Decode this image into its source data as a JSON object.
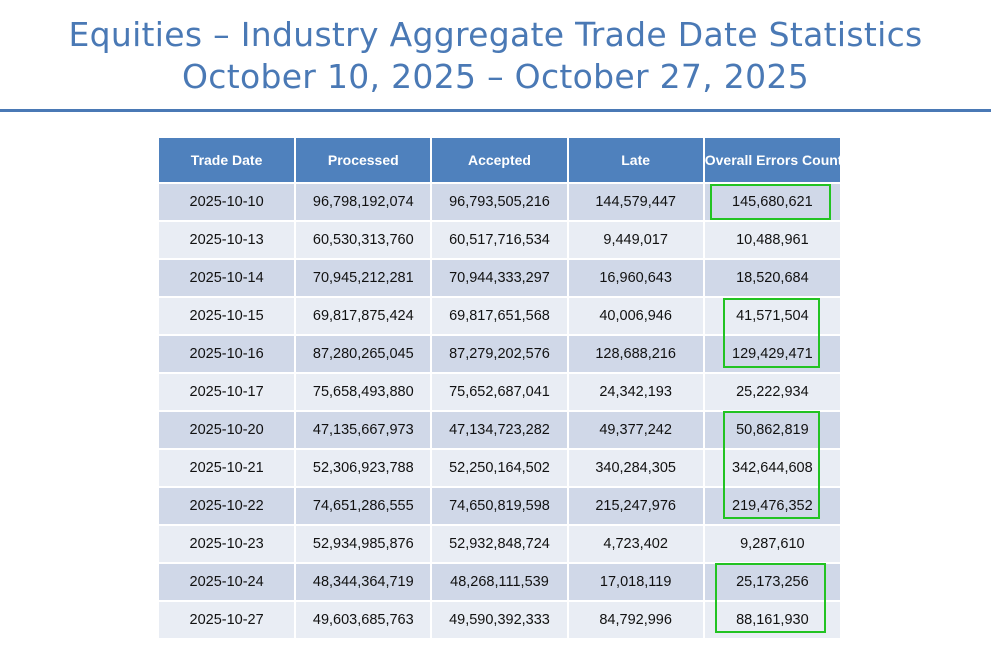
{
  "header": {
    "title_line1": "Equities – Industry Aggregate Trade Date Statistics",
    "title_line2": "October 10, 2025 – October 27, 2025"
  },
  "table": {
    "columns": [
      "Trade Date",
      "Processed",
      "Accepted",
      "Late",
      "Overall Errors Count"
    ],
    "rows": [
      {
        "trade_date": "2025-10-10",
        "processed": "96,798,192,074",
        "accepted": "96,793,505,216",
        "late": "144,579,447",
        "errors": "145,680,621"
      },
      {
        "trade_date": "2025-10-13",
        "processed": "60,530,313,760",
        "accepted": "60,517,716,534",
        "late": "9,449,017",
        "errors": "10,488,961"
      },
      {
        "trade_date": "2025-10-14",
        "processed": "70,945,212,281",
        "accepted": "70,944,333,297",
        "late": "16,960,643",
        "errors": "18,520,684"
      },
      {
        "trade_date": "2025-10-15",
        "processed": "69,817,875,424",
        "accepted": "69,817,651,568",
        "late": "40,006,946",
        "errors": "41,571,504"
      },
      {
        "trade_date": "2025-10-16",
        "processed": "87,280,265,045",
        "accepted": "87,279,202,576",
        "late": "128,688,216",
        "errors": "129,429,471"
      },
      {
        "trade_date": "2025-10-17",
        "processed": "75,658,493,880",
        "accepted": "75,652,687,041",
        "late": "24,342,193",
        "errors": "25,222,934"
      },
      {
        "trade_date": "2025-10-20",
        "processed": "47,135,667,973",
        "accepted": "47,134,723,282",
        "late": "49,377,242",
        "errors": "50,862,819"
      },
      {
        "trade_date": "2025-10-21",
        "processed": "52,306,923,788",
        "accepted": "52,250,164,502",
        "late": "340,284,305",
        "errors": "342,644,608"
      },
      {
        "trade_date": "2025-10-22",
        "processed": "74,651,286,555",
        "accepted": "74,650,819,598",
        "late": "215,247,976",
        "errors": "219,476,352"
      },
      {
        "trade_date": "2025-10-23",
        "processed": "52,934,985,876",
        "accepted": "52,932,848,724",
        "late": "4,723,402",
        "errors": "9,287,610"
      },
      {
        "trade_date": "2025-10-24",
        "processed": "48,344,364,719",
        "accepted": "48,268,111,539",
        "late": "17,018,119",
        "errors": "25,173,256"
      },
      {
        "trade_date": "2025-10-27",
        "processed": "49,603,685,763",
        "accepted": "49,590,392,333",
        "late": "84,792,996",
        "errors": "88,161,930"
      }
    ]
  },
  "colors": {
    "title": "#4a79b5",
    "header_bg": "#4f81bd",
    "row_odd": "#d0d8e8",
    "row_even": "#e9edf4",
    "highlight": "#22c322"
  }
}
